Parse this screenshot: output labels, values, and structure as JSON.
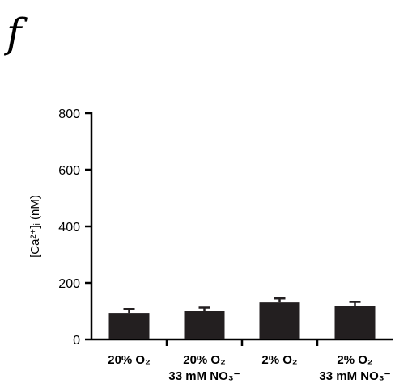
{
  "chart_data": {
    "type": "bar",
    "panel_label": "f",
    "ylabel": "[Ca²⁺]ᵢ (nM)",
    "categories": [
      "20% O₂",
      "20% O₂\n33 mM NO₃⁻",
      "2% O₂",
      "2% O₂\n33 mM NO₃⁻"
    ],
    "values": [
      94,
      100,
      131,
      120
    ],
    "errors": [
      14,
      13,
      14,
      13
    ],
    "color": "#231f20",
    "ylim": [
      0,
      800
    ],
    "yticks": [
      0,
      200,
      400,
      600,
      800
    ]
  }
}
